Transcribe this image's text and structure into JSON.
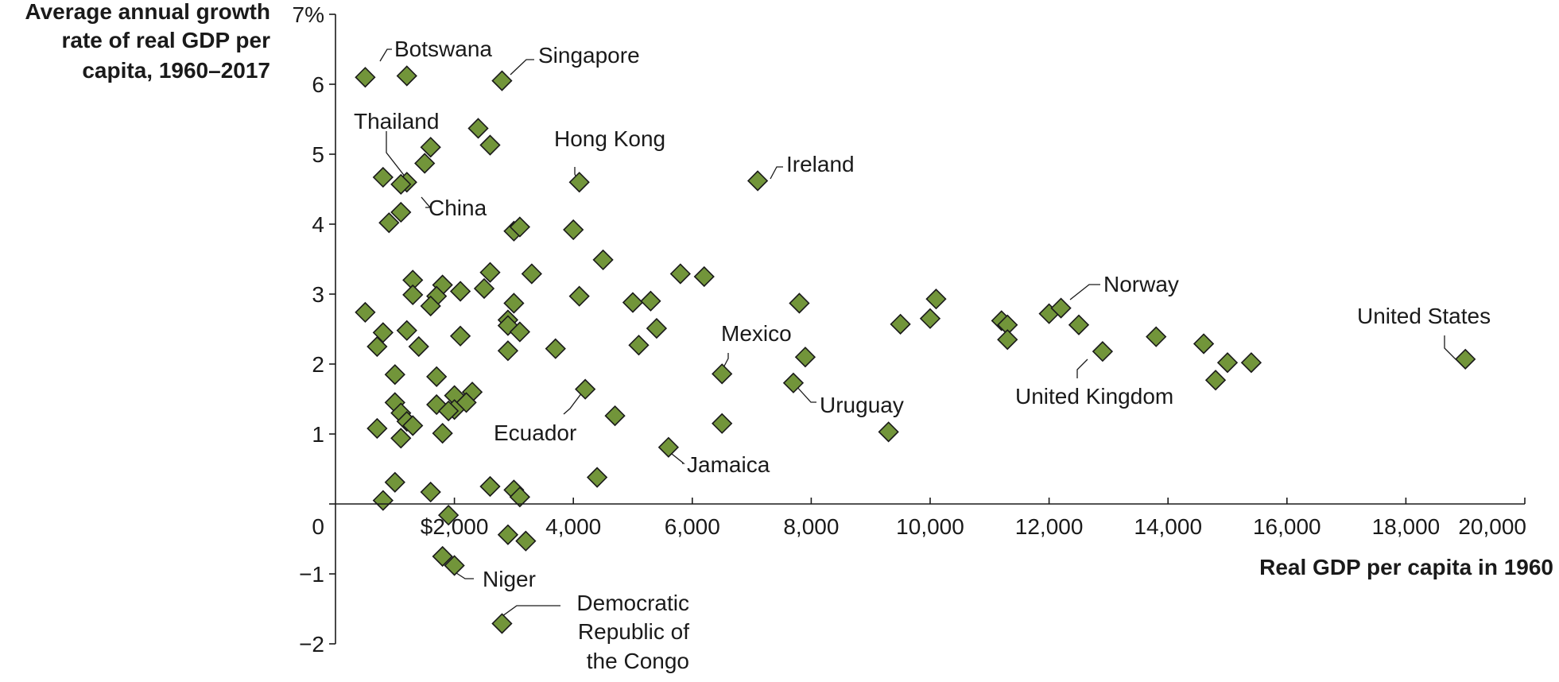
{
  "chart_data": {
    "type": "scatter",
    "ylabel_lines": [
      "Average annual growth",
      "rate of real GDP per",
      "capita, 1960–2017"
    ],
    "xlabel": "Real GDP per capita in 1960",
    "xlim": [
      0,
      20000
    ],
    "ylim": [
      -2,
      7
    ],
    "x_ticks": [
      {
        "value": 2000,
        "label": "$2,000"
      },
      {
        "value": 4000,
        "label": "4,000"
      },
      {
        "value": 6000,
        "label": "6,000"
      },
      {
        "value": 8000,
        "label": "8,000"
      },
      {
        "value": 10000,
        "label": "10,000"
      },
      {
        "value": 12000,
        "label": "12,000"
      },
      {
        "value": 14000,
        "label": "14,000"
      },
      {
        "value": 16000,
        "label": "16,000"
      },
      {
        "value": 18000,
        "label": "18,000"
      },
      {
        "value": 20000,
        "label": "20,000"
      }
    ],
    "y_ticks": [
      {
        "value": 7,
        "label": "7%"
      },
      {
        "value": 6,
        "label": "6"
      },
      {
        "value": 5,
        "label": "5"
      },
      {
        "value": 4,
        "label": "4"
      },
      {
        "value": 3,
        "label": "3"
      },
      {
        "value": 2,
        "label": "2"
      },
      {
        "value": 1,
        "label": "1"
      },
      {
        "value": 0,
        "label": "0"
      },
      {
        "value": -1,
        "label": "−1"
      },
      {
        "value": -2,
        "label": "−2"
      }
    ],
    "marker_color": "#72953a",
    "points": [
      [
        500,
        6.1
      ],
      [
        1200,
        6.12
      ],
      [
        2800,
        6.05
      ],
      [
        2400,
        5.37
      ],
      [
        2600,
        5.13
      ],
      [
        1600,
        5.1
      ],
      [
        1500,
        4.87
      ],
      [
        800,
        4.67
      ],
      [
        1200,
        4.6
      ],
      [
        1100,
        4.57
      ],
      [
        4100,
        4.6
      ],
      [
        7100,
        4.62
      ],
      [
        1100,
        4.17
      ],
      [
        900,
        4.02
      ],
      [
        3000,
        3.9
      ],
      [
        3100,
        3.96
      ],
      [
        4000,
        3.92
      ],
      [
        1300,
        3.2
      ],
      [
        1800,
        3.13
      ],
      [
        2100,
        3.04
      ],
      [
        1300,
        2.99
      ],
      [
        1700,
        2.97
      ],
      [
        2500,
        3.08
      ],
      [
        2600,
        3.31
      ],
      [
        3300,
        3.29
      ],
      [
        4500,
        3.49
      ],
      [
        5800,
        3.29
      ],
      [
        6200,
        3.25
      ],
      [
        500,
        2.74
      ],
      [
        1600,
        2.83
      ],
      [
        3000,
        2.87
      ],
      [
        2900,
        2.63
      ],
      [
        2900,
        2.55
      ],
      [
        3100,
        2.46
      ],
      [
        4100,
        2.97
      ],
      [
        5000,
        2.88
      ],
      [
        5300,
        2.9
      ],
      [
        5400,
        2.51
      ],
      [
        7800,
        2.87
      ],
      [
        10100,
        2.93
      ],
      [
        800,
        2.45
      ],
      [
        700,
        2.25
      ],
      [
        1200,
        2.48
      ],
      [
        1400,
        2.25
      ],
      [
        2100,
        2.4
      ],
      [
        2900,
        2.19
      ],
      [
        3700,
        2.22
      ],
      [
        5100,
        2.27
      ],
      [
        9500,
        2.57
      ],
      [
        10000,
        2.65
      ],
      [
        11200,
        2.62
      ],
      [
        11300,
        2.56
      ],
      [
        11300,
        2.35
      ],
      [
        12000,
        2.72
      ],
      [
        12200,
        2.8
      ],
      [
        12500,
        2.56
      ],
      [
        12900,
        2.18
      ],
      [
        13800,
        2.39
      ],
      [
        14600,
        2.29
      ],
      [
        15000,
        2.02
      ],
      [
        15400,
        2.02
      ],
      [
        14800,
        1.77
      ],
      [
        19000,
        2.07
      ],
      [
        7900,
        2.1
      ],
      [
        1000,
        1.85
      ],
      [
        1700,
        1.82
      ],
      [
        6500,
        1.86
      ],
      [
        7700,
        1.73
      ],
      [
        1000,
        1.45
      ],
      [
        2000,
        1.55
      ],
      [
        2300,
        1.6
      ],
      [
        2200,
        1.45
      ],
      [
        1700,
        1.42
      ],
      [
        2000,
        1.35
      ],
      [
        1900,
        1.33
      ],
      [
        1100,
        1.3
      ],
      [
        1200,
        1.18
      ],
      [
        1300,
        1.12
      ],
      [
        4200,
        1.64
      ],
      [
        4700,
        1.26
      ],
      [
        1100,
        0.94
      ],
      [
        700,
        1.08
      ],
      [
        1800,
        1.01
      ],
      [
        6500,
        1.15
      ],
      [
        9300,
        1.03
      ],
      [
        5600,
        0.81
      ],
      [
        1000,
        0.31
      ],
      [
        1600,
        0.17
      ],
      [
        2600,
        0.25
      ],
      [
        3000,
        0.2
      ],
      [
        3100,
        0.1
      ],
      [
        4400,
        0.38
      ],
      [
        800,
        0.05
      ],
      [
        1900,
        -0.16
      ],
      [
        2900,
        -0.44
      ],
      [
        3200,
        -0.53
      ],
      [
        1800,
        -0.75
      ],
      [
        2000,
        -0.88
      ],
      [
        2800,
        -1.71
      ]
    ],
    "annotations": [
      {
        "label": "Botswana"
      },
      {
        "label": "Singapore"
      },
      {
        "label": "Thailand"
      },
      {
        "label": "China"
      },
      {
        "label": "Hong Kong"
      },
      {
        "label": "Ireland"
      },
      {
        "label": "Norway"
      },
      {
        "label": "United States"
      },
      {
        "label": "Mexico"
      },
      {
        "label": "Uruguay"
      },
      {
        "label": "United Kingdom"
      },
      {
        "label": "Ecuador"
      },
      {
        "label": "Jamaica"
      },
      {
        "label": "Niger"
      },
      {
        "label_lines": [
          "Democratic",
          "Republic of",
          "the Congo"
        ]
      }
    ]
  }
}
